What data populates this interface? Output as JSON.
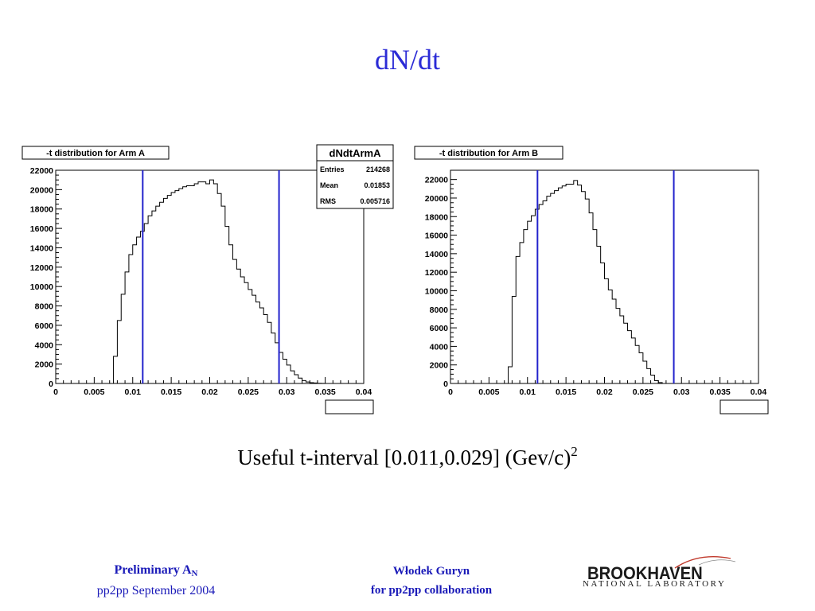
{
  "slide": {
    "title": "dN/dt",
    "caption_main": "Useful t-interval [0.011,0.029] (Gev/c)",
    "caption_sup": "2"
  },
  "footer": {
    "left_line1_main": "Preliminary A",
    "left_line1_sub": "N",
    "left_line2": "pp2pp September 2004",
    "center_line1": "Włodek Guryn",
    "center_line2": "for pp2pp collaboration",
    "logo_main": "BROOKHAVEN",
    "logo_sub": "NATIONAL LABORATORY"
  },
  "colors": {
    "title": "#2b2bd6",
    "footer_text": "#1a1ab8",
    "cut_lines": "#2222cc",
    "histogram": "#000000",
    "logo_accent": "#c0392b"
  },
  "chart_data": [
    {
      "type": "bar",
      "title": "-t distribution for Arm A",
      "xlim": [
        0,
        0.04
      ],
      "ylim": [
        0,
        22000
      ],
      "xticks": [
        "0",
        "0.005",
        "0.01",
        "0.015",
        "0.02",
        "0.025",
        "0.03",
        "0.035",
        "0.04"
      ],
      "yticks": [
        "0",
        "2000",
        "4000",
        "6000",
        "8000",
        "10000",
        "12000",
        "14000",
        "16000",
        "18000",
        "20000",
        "22000"
      ],
      "bin_width": 0.0005,
      "x_start": 0,
      "values": [
        0,
        0,
        0,
        0,
        0,
        0,
        0,
        0,
        0,
        0,
        0,
        0,
        0,
        0,
        0,
        2800,
        6500,
        9200,
        11500,
        13300,
        14300,
        15100,
        15700,
        16500,
        17300,
        17800,
        18300,
        18700,
        19100,
        19400,
        19700,
        19900,
        20100,
        20300,
        20400,
        20400,
        20600,
        20800,
        20800,
        20600,
        21000,
        20600,
        19600,
        18300,
        16200,
        14300,
        12800,
        11800,
        11000,
        10400,
        9700,
        9100,
        8400,
        7800,
        7100,
        6300,
        5200,
        4200,
        3200,
        2500,
        1900,
        1300,
        900,
        550,
        300,
        150,
        80,
        50,
        20,
        10,
        5,
        0,
        0,
        0,
        0,
        0,
        0,
        0,
        0,
        0
      ],
      "cut_lines": [
        0.0113,
        0.029
      ],
      "stats": {
        "title": "dNdtArmA",
        "rows": [
          {
            "label": "Entries",
            "value": "214268"
          },
          {
            "label": "Mean",
            "value": "0.01853"
          },
          {
            "label": "RMS",
            "value": "0.005716"
          }
        ]
      }
    },
    {
      "type": "bar",
      "title": "-t distribution for Arm B",
      "xlim": [
        0,
        0.04
      ],
      "ylim": [
        0,
        23000
      ],
      "xticks": [
        "0",
        "0.005",
        "0.01",
        "0.015",
        "0.02",
        "0.025",
        "0.03",
        "0.035",
        "0.04"
      ],
      "yticks": [
        "0",
        "2000",
        "4000",
        "6000",
        "8000",
        "10000",
        "12000",
        "14000",
        "16000",
        "18000",
        "20000",
        "22000"
      ],
      "bin_width": 0.0005,
      "x_start": 0,
      "values": [
        0,
        0,
        0,
        0,
        0,
        0,
        0,
        0,
        0,
        0,
        0,
        0,
        0,
        0,
        0,
        1800,
        9400,
        13700,
        15200,
        16600,
        17500,
        18100,
        18800,
        19300,
        19700,
        20200,
        20500,
        20800,
        21100,
        21300,
        21500,
        21500,
        21900,
        21400,
        20700,
        19900,
        18400,
        16600,
        14800,
        13000,
        11300,
        10100,
        9100,
        8100,
        7300,
        6500,
        5700,
        4900,
        4100,
        3300,
        2400,
        1600,
        900,
        300,
        100,
        0,
        0,
        0,
        0,
        0,
        0,
        0,
        0,
        0,
        0,
        0,
        0,
        0,
        0,
        0,
        0,
        0,
        0,
        0,
        0,
        0,
        0,
        0,
        0,
        0
      ],
      "cut_lines": [
        0.0113,
        0.029
      ],
      "stats": null
    }
  ]
}
